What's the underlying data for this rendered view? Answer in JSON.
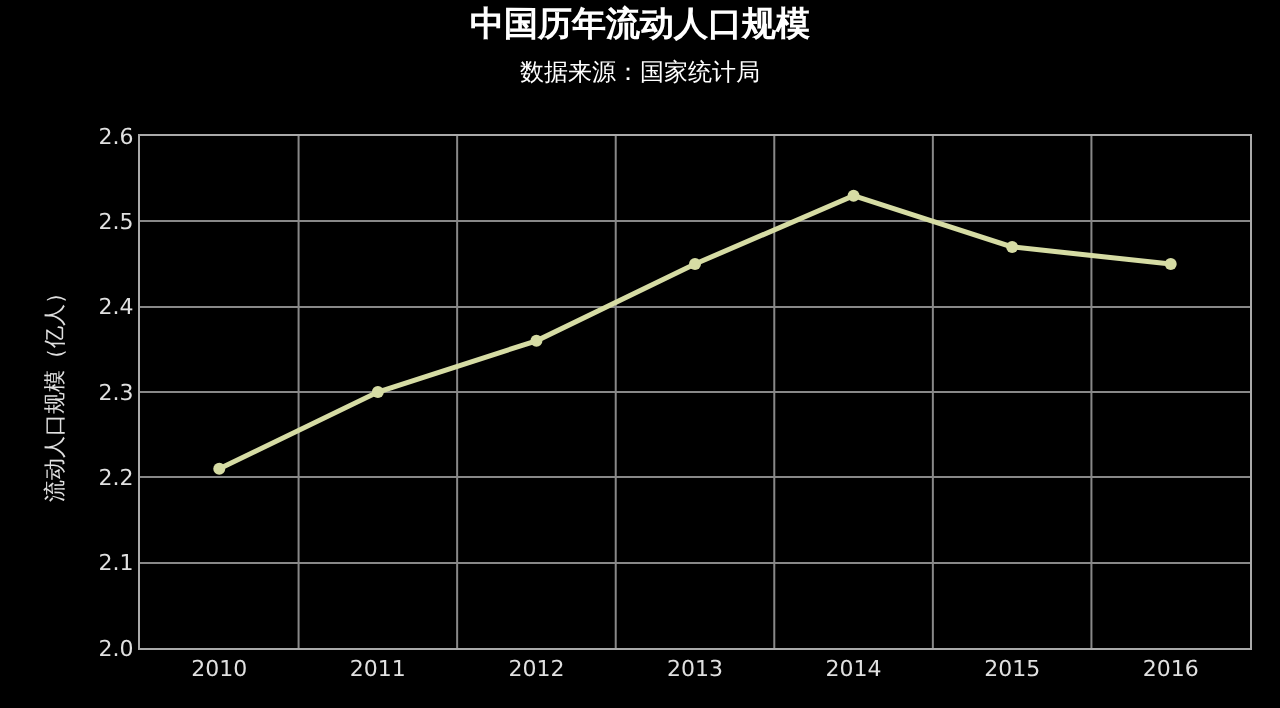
{
  "chart_data": {
    "type": "line",
    "title": "中国历年流动人口规模",
    "subtitle": "数据来源：国家统计局",
    "ylabel": "流动人口规模（亿人）",
    "categories": [
      "2010",
      "2011",
      "2012",
      "2013",
      "2014",
      "2015",
      "2016"
    ],
    "series": [
      {
        "color": "#d6dca4",
        "values": [
          2.21,
          2.3,
          2.36,
          2.45,
          2.53,
          2.47,
          2.45
        ]
      }
    ],
    "ylim": [
      2.0,
      2.6
    ],
    "yticks": [
      {
        "value": 2.0,
        "label": "2.0"
      },
      2.1,
      2.2,
      2.3,
      2.4,
      2.5,
      2.6
    ],
    "grid": true,
    "marker": "circle",
    "line_style": "solid",
    "legend": false
  }
}
